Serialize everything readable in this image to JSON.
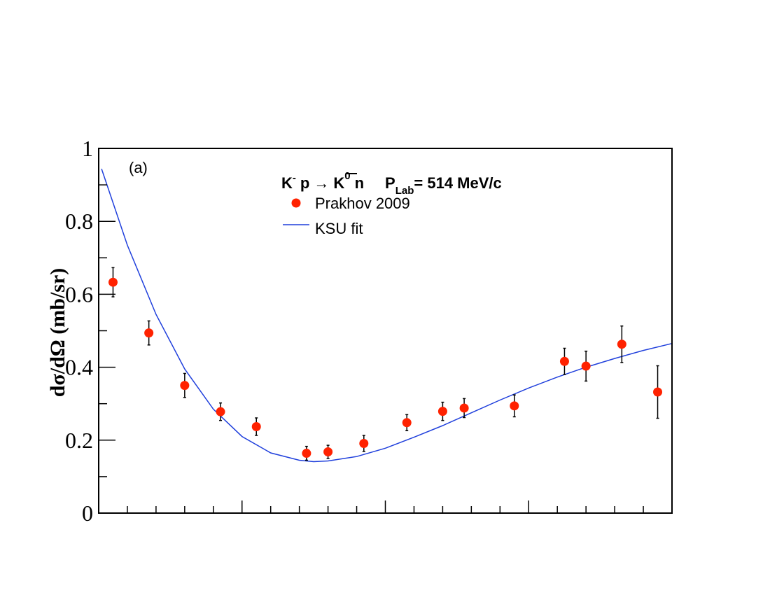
{
  "chart_data": {
    "type": "scatter",
    "panel_label": "(a)",
    "title": {
      "reaction_k": "K",
      "reaction_k_sup": "-",
      "reaction_p": "p",
      "arrow": "→",
      "kbar": "K",
      "kbar_sup": "0",
      "reaction_n": "n",
      "plab": "P",
      "plab_sub": "Lab",
      "plab_value": "= 514 MeV/c"
    },
    "ylabel": "dσ/dΩ (mb/sr)",
    "xlabel": "",
    "xlim": [
      -1,
      1
    ],
    "ylim": [
      0,
      1
    ],
    "yticks": [
      {
        "value": 0,
        "label": "0"
      },
      {
        "value": 0.2,
        "label": "0.2"
      },
      {
        "value": 0.4,
        "label": "0.4"
      },
      {
        "value": 0.6,
        "label": "0.6"
      },
      {
        "value": 0.8,
        "label": "0.8"
      },
      {
        "value": 1.0,
        "label": "1"
      }
    ],
    "legend": [
      {
        "name": "Prakhov 2009",
        "marker": "circle",
        "color": "#ff2200"
      },
      {
        "name": "KSU fit",
        "marker": "line",
        "color": "#1f3fdc"
      }
    ],
    "series": [
      {
        "name": "Prakhov 2009",
        "color": "#ff2200",
        "points": [
          {
            "x": -0.95,
            "y": 0.633,
            "err": 0.04
          },
          {
            "x": -0.825,
            "y": 0.494,
            "err": 0.033
          },
          {
            "x": -0.7,
            "y": 0.35,
            "err": 0.033
          },
          {
            "x": -0.575,
            "y": 0.278,
            "err": 0.024
          },
          {
            "x": -0.45,
            "y": 0.237,
            "err": 0.024
          },
          {
            "x": -0.275,
            "y": 0.164,
            "err": 0.019
          },
          {
            "x": -0.2,
            "y": 0.168,
            "err": 0.018
          },
          {
            "x": -0.075,
            "y": 0.191,
            "err": 0.022
          },
          {
            "x": 0.075,
            "y": 0.248,
            "err": 0.022
          },
          {
            "x": 0.2,
            "y": 0.279,
            "err": 0.025
          },
          {
            "x": 0.275,
            "y": 0.288,
            "err": 0.026
          },
          {
            "x": 0.45,
            "y": 0.294,
            "err": 0.03
          },
          {
            "x": 0.625,
            "y": 0.416,
            "err": 0.036
          },
          {
            "x": 0.7,
            "y": 0.403,
            "err": 0.041
          },
          {
            "x": 0.825,
            "y": 0.463,
            "err": 0.05
          },
          {
            "x": 0.95,
            "y": 0.332,
            "err": 0.072
          }
        ]
      },
      {
        "name": "KSU fit",
        "color": "#1f3fdc",
        "curve": [
          {
            "x": -0.99,
            "y": 0.944
          },
          {
            "x": -0.9,
            "y": 0.735
          },
          {
            "x": -0.8,
            "y": 0.545
          },
          {
            "x": -0.7,
            "y": 0.395
          },
          {
            "x": -0.6,
            "y": 0.285
          },
          {
            "x": -0.5,
            "y": 0.21
          },
          {
            "x": -0.4,
            "y": 0.165
          },
          {
            "x": -0.3,
            "y": 0.145
          },
          {
            "x": -0.25,
            "y": 0.141
          },
          {
            "x": -0.2,
            "y": 0.143
          },
          {
            "x": -0.1,
            "y": 0.155
          },
          {
            "x": 0.0,
            "y": 0.178
          },
          {
            "x": 0.1,
            "y": 0.208
          },
          {
            "x": 0.2,
            "y": 0.24
          },
          {
            "x": 0.3,
            "y": 0.275
          },
          {
            "x": 0.4,
            "y": 0.31
          },
          {
            "x": 0.5,
            "y": 0.343
          },
          {
            "x": 0.6,
            "y": 0.373
          },
          {
            "x": 0.7,
            "y": 0.4
          },
          {
            "x": 0.8,
            "y": 0.424
          },
          {
            "x": 0.9,
            "y": 0.446
          },
          {
            "x": 1.0,
            "y": 0.465
          }
        ]
      }
    ]
  }
}
